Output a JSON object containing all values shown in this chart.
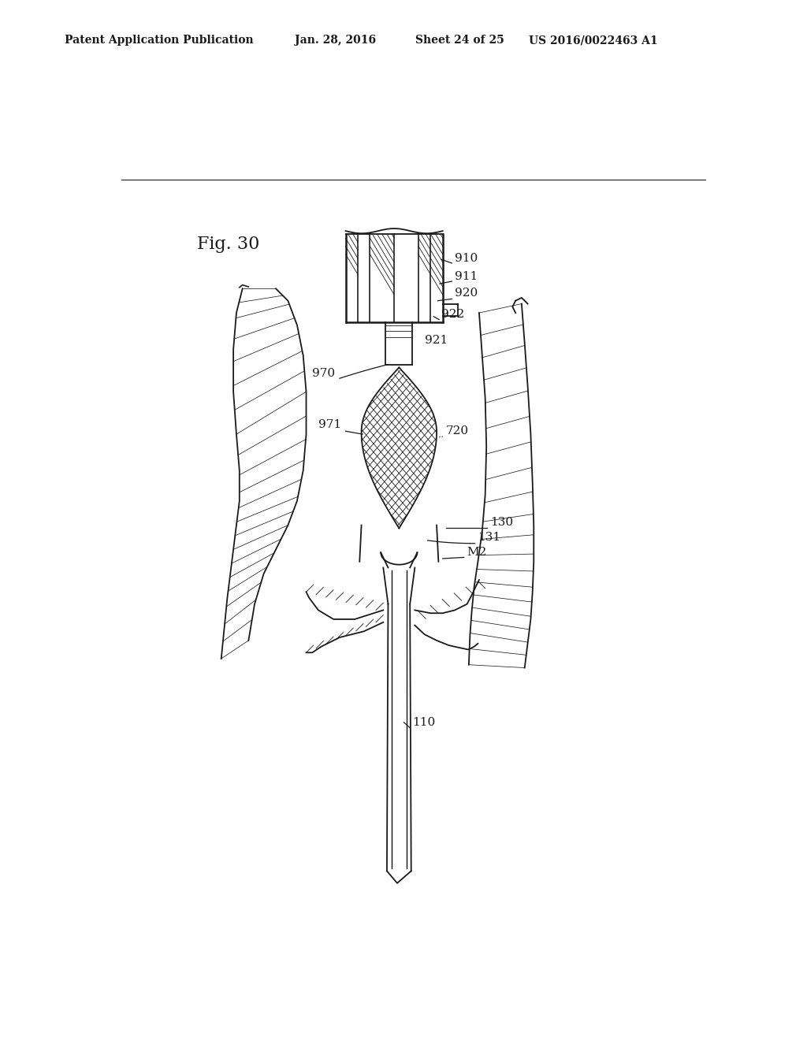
{
  "bg_color": "#ffffff",
  "header_text": "Patent Application Publication",
  "header_date": "Jan. 28, 2016",
  "header_sheet": "Sheet 24 of 25",
  "header_patent": "US 2016/0022463 A1",
  "fig_label": "Fig. 30",
  "line_color": "#1a1a1a",
  "lw": 1.3,
  "lw_thick": 1.8,
  "lw_thin": 0.6,
  "label_fontsize": 11,
  "fig_label_fontsize": 16
}
